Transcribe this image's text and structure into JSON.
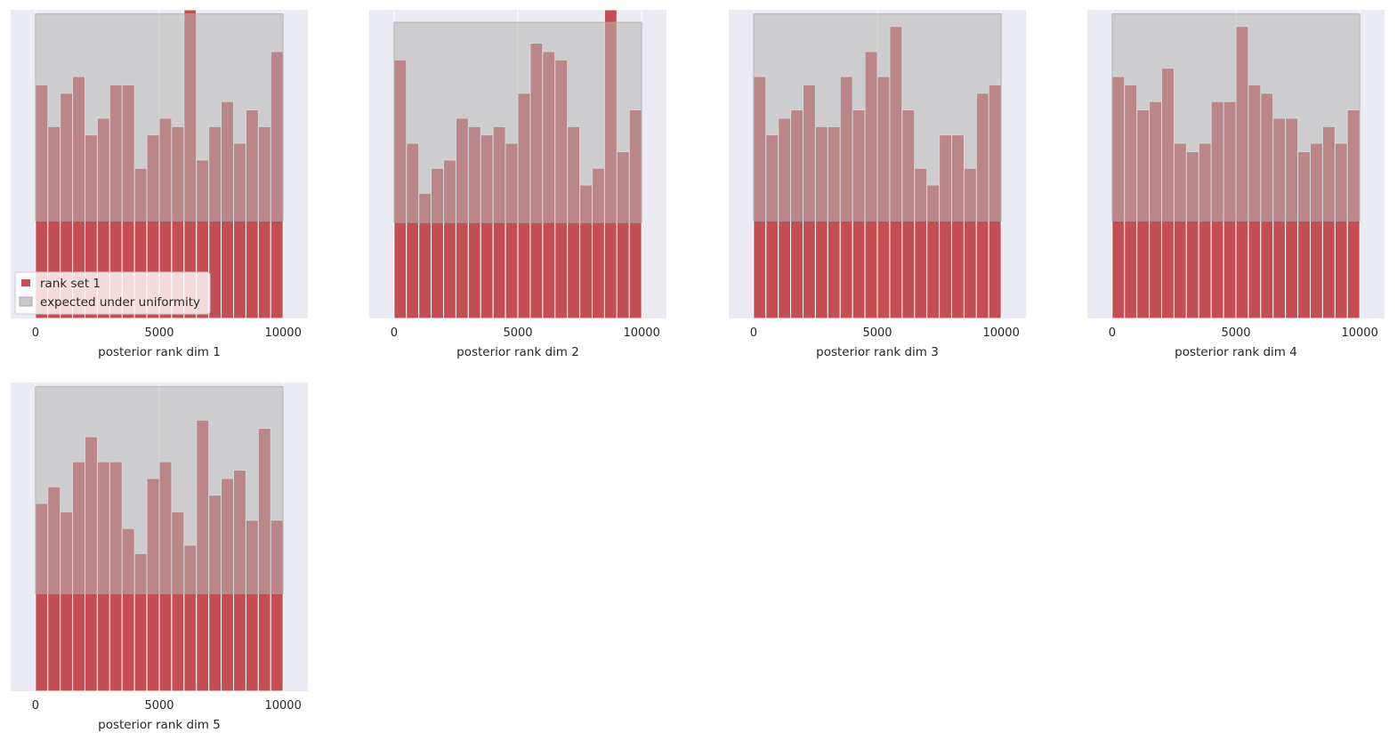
{
  "colors": {
    "panel_background": "#eaeaf2",
    "grid": "#ffffff",
    "bar": "#c44e52",
    "uniform_band": "#b4b4b4",
    "uniform_band_edge": "#a8a8a8",
    "legend_background": "#ffffff"
  },
  "legend": {
    "location": "lower-left",
    "entries": [
      {
        "label": "rank set 1",
        "kind": "bar"
      },
      {
        "label": "expected under uniformity",
        "kind": "band"
      }
    ]
  },
  "chart_data": [
    {
      "type": "bar",
      "title": "",
      "xlabel": "posterior rank dim 1",
      "ylabel": "",
      "xlim": [
        -1000,
        11000
      ],
      "ylim": [
        0,
        37
      ],
      "xticks": [
        0,
        5000,
        10000
      ],
      "xtick_labels": [
        "0",
        "5000",
        "10000"
      ],
      "grid": true,
      "bin_edges": [
        0,
        500,
        1000,
        1500,
        2000,
        2500,
        3000,
        3500,
        4000,
        4500,
        5000,
        5500,
        6000,
        6500,
        7000,
        7500,
        8000,
        8500,
        9000,
        9500,
        10000
      ],
      "values": [
        28,
        23,
        27,
        29,
        22,
        24,
        28,
        28,
        18,
        22,
        24,
        23,
        37,
        19,
        23,
        26,
        21,
        25,
        23,
        32
      ],
      "uniform_band": [
        11.7,
        36.5
      ]
    },
    {
      "type": "bar",
      "title": "",
      "xlabel": "posterior rank dim 2",
      "ylabel": "",
      "xlim": [
        -1000,
        11000
      ],
      "ylim": [
        0,
        37
      ],
      "xticks": [
        0,
        5000,
        10000
      ],
      "xtick_labels": [
        "0",
        "5000",
        "10000"
      ],
      "grid": true,
      "bin_edges": [
        0,
        500,
        1000,
        1500,
        2000,
        2500,
        3000,
        3500,
        4000,
        4500,
        5000,
        5500,
        6000,
        6500,
        7000,
        7500,
        8000,
        8500,
        9000,
        9500,
        10000
      ],
      "values": [
        31,
        21,
        15,
        18,
        19,
        24,
        23,
        22,
        23,
        21,
        27,
        33,
        32,
        31,
        23,
        16,
        18,
        37,
        20,
        25
      ],
      "uniform_band": [
        11.5,
        35.5
      ]
    },
    {
      "type": "bar",
      "title": "",
      "xlabel": "posterior rank dim 3",
      "ylabel": "",
      "xlim": [
        -1000,
        11000
      ],
      "ylim": [
        0,
        37
      ],
      "xticks": [
        0,
        5000,
        10000
      ],
      "xtick_labels": [
        "0",
        "5000",
        "10000"
      ],
      "grid": true,
      "bin_edges": [
        0,
        500,
        1000,
        1500,
        2000,
        2500,
        3000,
        3500,
        4000,
        4500,
        5000,
        5500,
        6000,
        6500,
        7000,
        7500,
        8000,
        8500,
        9000,
        9500,
        10000
      ],
      "values": [
        29,
        22,
        24,
        25,
        28,
        23,
        23,
        29,
        25,
        32,
        29,
        35,
        25,
        18,
        16,
        22,
        22,
        18,
        27,
        28
      ],
      "uniform_band": [
        11.7,
        36.5
      ]
    },
    {
      "type": "bar",
      "title": "",
      "xlabel": "posterior rank dim 4",
      "ylabel": "",
      "xlim": [
        -1000,
        11000
      ],
      "ylim": [
        0,
        37
      ],
      "xticks": [
        0,
        5000,
        10000
      ],
      "xtick_labels": [
        "0",
        "5000",
        "10000"
      ],
      "grid": true,
      "bin_edges": [
        0,
        500,
        1000,
        1500,
        2000,
        2500,
        3000,
        3500,
        4000,
        4500,
        5000,
        5500,
        6000,
        6500,
        7000,
        7500,
        8000,
        8500,
        9000,
        9500,
        10000
      ],
      "values": [
        29,
        28,
        25,
        26,
        30,
        21,
        20,
        21,
        26,
        26,
        35,
        28,
        27,
        24,
        24,
        20,
        21,
        23,
        21,
        25
      ],
      "uniform_band": [
        11.7,
        36.5
      ]
    },
    {
      "type": "bar",
      "title": "",
      "xlabel": "posterior rank dim 5",
      "ylabel": "",
      "xlim": [
        -1000,
        11000
      ],
      "ylim": [
        0,
        37
      ],
      "xticks": [
        0,
        5000,
        10000
      ],
      "xtick_labels": [
        "0",
        "5000",
        "10000"
      ],
      "grid": true,
      "bin_edges": [
        0,
        500,
        1000,
        1500,
        2000,
        2500,
        3000,
        3500,
        4000,
        4500,
        5000,
        5500,
        6000,
        6500,
        7000,
        7500,
        8000,
        8500,
        9000,
        9500,
        10000
      ],
      "values": [
        22.5,
        24.5,
        21.5,
        27.5,
        30.5,
        27.5,
        27.5,
        19.5,
        16.5,
        25.5,
        27.5,
        21.5,
        17.5,
        32.5,
        23.5,
        25.5,
        26.5,
        20.5,
        31.5,
        20.5
      ],
      "uniform_band": [
        11.7,
        36.5
      ]
    }
  ]
}
